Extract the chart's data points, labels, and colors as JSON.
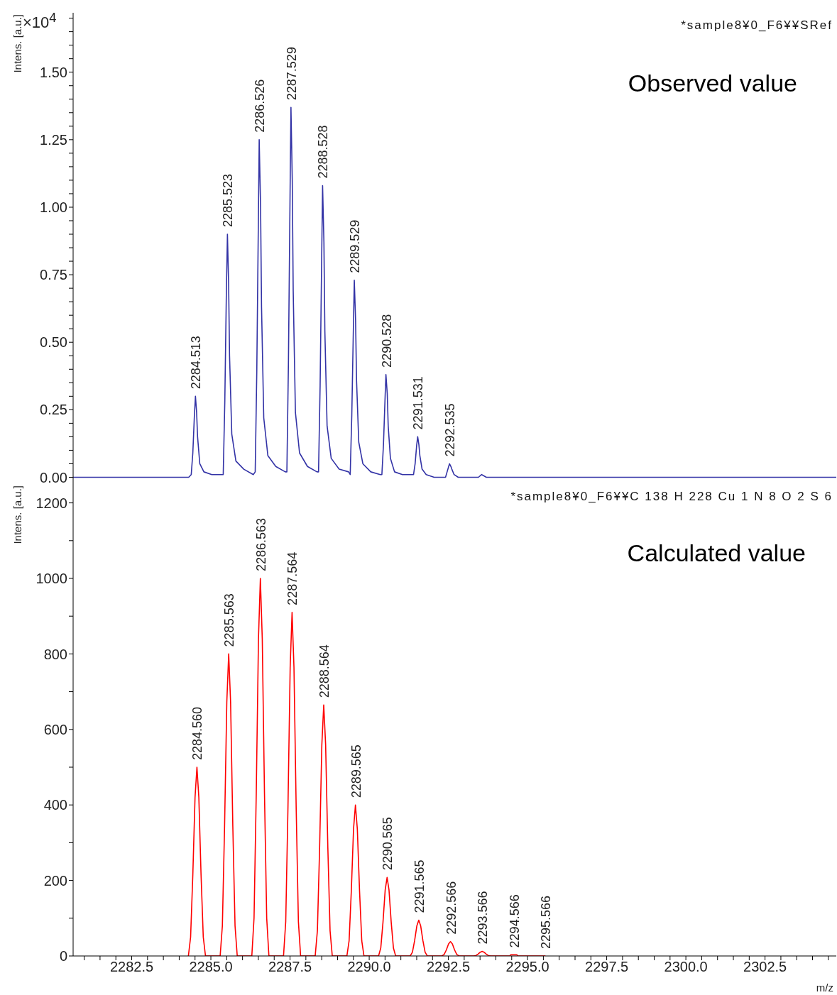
{
  "chart_data": [
    {
      "type": "line",
      "title": "Observed value",
      "ylabel": "Intens. [a.u.]",
      "tick_labels": "y",
      "xlim": [
        2280.65,
        2304.75
      ],
      "ylim": [
        -0.025,
        1.72
      ],
      "yticks": [
        {
          "value": 0,
          "label": "0.00"
        },
        {
          "value": 0.05,
          "label": null
        },
        {
          "value": 0.1,
          "label": null
        },
        {
          "value": 0.15,
          "label": null
        },
        {
          "value": 0.2,
          "label": null
        },
        {
          "value": 0.25,
          "label": "0.25"
        },
        {
          "value": 0.3,
          "label": null
        },
        {
          "value": 0.35,
          "label": null
        },
        {
          "value": 0.4,
          "label": null
        },
        {
          "value": 0.45,
          "label": null
        },
        {
          "value": 0.5,
          "label": "0.50"
        },
        {
          "value": 0.55,
          "label": null
        },
        {
          "value": 0.6,
          "label": null
        },
        {
          "value": 0.65,
          "label": null
        },
        {
          "value": 0.7,
          "label": null
        },
        {
          "value": 0.75,
          "label": "0.75"
        },
        {
          "value": 0.8,
          "label": null
        },
        {
          "value": 0.85,
          "label": null
        },
        {
          "value": 0.9,
          "label": null
        },
        {
          "value": 0.95,
          "label": null
        },
        {
          "value": 1,
          "label": "1.00"
        },
        {
          "value": 1.05,
          "label": null
        },
        {
          "value": 1.1,
          "label": null
        },
        {
          "value": 1.15,
          "label": null
        },
        {
          "value": 1.2,
          "label": null
        },
        {
          "value": 1.25,
          "label": "1.25"
        },
        {
          "value": 1.3,
          "label": null
        },
        {
          "value": 1.35,
          "label": null
        },
        {
          "value": 1.4,
          "label": null
        },
        {
          "value": 1.45,
          "label": null
        },
        {
          "value": 1.5,
          "label": "1.50"
        },
        {
          "value": 1.55,
          "label": null
        },
        {
          "value": 1.6,
          "label": null
        },
        {
          "value": 1.65,
          "label": null
        },
        {
          "value": 1.7,
          "label": null
        }
      ],
      "series": [
        {
          "color": "#3333a6",
          "x": [
            2280.65,
            2284.3,
            2284.38,
            2284.43,
            2284.48,
            2284.513,
            2284.55,
            2284.58,
            2284.65,
            2284.78,
            2285.03,
            2285.33,
            2285.39,
            2285.44,
            2285.49,
            2285.523,
            2285.56,
            2285.59,
            2285.66,
            2285.79,
            2286.04,
            2286.34,
            2286.4,
            2286.45,
            2286.5,
            2286.526,
            2286.57,
            2286.6,
            2286.67,
            2286.8,
            2287.05,
            2287.35,
            2287.4,
            2287.45,
            2287.5,
            2287.529,
            2287.57,
            2287.6,
            2287.67,
            2287.8,
            2288.05,
            2288.35,
            2288.4,
            2288.45,
            2288.5,
            2288.528,
            2288.57,
            2288.6,
            2288.67,
            2288.8,
            2289.05,
            2289.35,
            2289.4,
            2289.45,
            2289.5,
            2289.529,
            2289.57,
            2289.6,
            2289.67,
            2289.8,
            2290.05,
            2290.35,
            2290.4,
            2290.45,
            2290.5,
            2290.528,
            2290.57,
            2290.6,
            2290.67,
            2290.8,
            2291.05,
            2291.35,
            2291.4,
            2291.45,
            2291.5,
            2291.531,
            2291.57,
            2291.6,
            2291.67,
            2291.8,
            2292.05,
            2292.35,
            2292.41,
            2292.46,
            2292.51,
            2292.535,
            2292.58,
            2292.61,
            2292.68,
            2292.81,
            2293.45,
            2293.55,
            2293.7,
            2304.75
          ],
          "values": [
            0,
            0,
            0.01,
            0.09,
            0.23,
            0.3,
            0.24,
            0.15,
            0.05,
            0.02,
            0.01,
            0.01,
            0.01,
            0.28,
            0.69,
            0.9,
            0.72,
            0.45,
            0.16,
            0.06,
            0.03,
            0.01,
            0.02,
            0.39,
            0.95,
            1.25,
            1,
            0.63,
            0.22,
            0.08,
            0.04,
            0.02,
            0.02,
            0.43,
            1.04,
            1.37,
            1.1,
            0.69,
            0.24,
            0.09,
            0.04,
            0.02,
            0.02,
            0.34,
            0.82,
            1.08,
            0.87,
            0.54,
            0.19,
            0.07,
            0.03,
            0.02,
            0.01,
            0.23,
            0.55,
            0.73,
            0.58,
            0.36,
            0.13,
            0.05,
            0.02,
            0.01,
            0.01,
            0.12,
            0.29,
            0.38,
            0.31,
            0.19,
            0.07,
            0.02,
            0.01,
            0.01,
            0.01,
            0.05,
            0.12,
            0.15,
            0.12,
            0.08,
            0.03,
            0.01,
            0,
            0,
            0,
            0.02,
            0.04,
            0.05,
            0.04,
            0.03,
            0.01,
            0,
            0,
            0.01,
            0,
            0
          ]
        }
      ],
      "annotations": [
        "*sample8¥0_F6¥¥SRef",
        "×10$^{4}$",
        {
          "text": "2284.513",
          "x": 2284.513,
          "y": 0.3
        },
        {
          "text": "2285.523",
          "x": 2285.523,
          "y": 0.9
        },
        {
          "text": "2286.526",
          "x": 2286.526,
          "y": 1.25
        },
        {
          "text": "2287.529",
          "x": 2287.529,
          "y": 1.37
        },
        {
          "text": "2288.528",
          "x": 2288.528,
          "y": 1.08
        },
        {
          "text": "2289.529",
          "x": 2289.529,
          "y": 0.73
        },
        {
          "text": "2290.528",
          "x": 2290.528,
          "y": 0.38
        },
        {
          "text": "2291.531",
          "x": 2291.531,
          "y": 0.15
        },
        {
          "text": "2292.535",
          "x": 2292.535,
          "y": 0.05
        }
      ]
    },
    {
      "type": "line",
      "title": "Calculated value",
      "ylabel": "Intens. [a.u.]",
      "xlabel": "m/z",
      "xlim": [
        2280.65,
        2304.75
      ],
      "ylim": [
        0,
        1250
      ],
      "xticks": [
        {
          "value": 2281,
          "label": null
        },
        {
          "value": 2281.5,
          "label": null
        },
        {
          "value": 2282,
          "label": null
        },
        {
          "value": 2282.5,
          "label": "2282.5"
        },
        {
          "value": 2283,
          "label": null
        },
        {
          "value": 2283.5,
          "label": null
        },
        {
          "value": 2284,
          "label": null
        },
        {
          "value": 2284.5,
          "label": null
        },
        {
          "value": 2285,
          "label": "2285.0"
        },
        {
          "value": 2285.5,
          "label": null
        },
        {
          "value": 2286,
          "label": null
        },
        {
          "value": 2286.5,
          "label": null
        },
        {
          "value": 2287,
          "label": null
        },
        {
          "value": 2287.5,
          "label": "2287.5"
        },
        {
          "value": 2288,
          "label": null
        },
        {
          "value": 2288.5,
          "label": null
        },
        {
          "value": 2289,
          "label": null
        },
        {
          "value": 2289.5,
          "label": null
        },
        {
          "value": 2290,
          "label": "2290.0"
        },
        {
          "value": 2290.5,
          "label": null
        },
        {
          "value": 2291,
          "label": null
        },
        {
          "value": 2291.5,
          "label": null
        },
        {
          "value": 2292,
          "label": null
        },
        {
          "value": 2292.5,
          "label": "2292.5"
        },
        {
          "value": 2293,
          "label": null
        },
        {
          "value": 2293.5,
          "label": null
        },
        {
          "value": 2294,
          "label": null
        },
        {
          "value": 2294.5,
          "label": null
        },
        {
          "value": 2295,
          "label": "2295.0"
        },
        {
          "value": 2295.5,
          "label": null
        },
        {
          "value": 2296,
          "label": null
        },
        {
          "value": 2296.5,
          "label": null
        },
        {
          "value": 2297,
          "label": null
        },
        {
          "value": 2297.5,
          "label": "2297.5"
        },
        {
          "value": 2298,
          "label": null
        },
        {
          "value": 2298.5,
          "label": null
        },
        {
          "value": 2299,
          "label": null
        },
        {
          "value": 2299.5,
          "label": null
        },
        {
          "value": 2300,
          "label": "2300.0"
        },
        {
          "value": 2300.5,
          "label": null
        },
        {
          "value": 2301,
          "label": null
        },
        {
          "value": 2301.5,
          "label": null
        },
        {
          "value": 2302,
          "label": null
        },
        {
          "value": 2302.5,
          "label": "2302.5"
        },
        {
          "value": 2303,
          "label": null
        },
        {
          "value": 2303.5,
          "label": null
        },
        {
          "value": 2304,
          "label": null
        },
        {
          "value": 2304.5,
          "label": null
        }
      ],
      "yticks": [
        0,
        {
          "value": 100,
          "label": null
        },
        200,
        {
          "value": 300,
          "label": null
        },
        400,
        {
          "value": 500,
          "label": null
        },
        600,
        {
          "value": 700,
          "label": null
        },
        800,
        {
          "value": 900,
          "label": null
        },
        1000,
        {
          "value": 1100,
          "label": null
        },
        1200
      ],
      "series": [
        {
          "color": "#ff0000",
          "x": [
            2284.29,
            2284.36,
            2284.43,
            2284.5,
            2284.56,
            2284.62,
            2284.69,
            2284.76,
            2284.83,
            2285.293,
            2285.363,
            2285.433,
            2285.503,
            2285.563,
            2285.623,
            2285.693,
            2285.763,
            2285.833,
            2286.293,
            2286.363,
            2286.433,
            2286.503,
            2286.563,
            2286.623,
            2286.693,
            2286.763,
            2286.833,
            2287.294,
            2287.364,
            2287.434,
            2287.504,
            2287.564,
            2287.624,
            2287.694,
            2287.764,
            2287.834,
            2288.294,
            2288.364,
            2288.434,
            2288.504,
            2288.564,
            2288.624,
            2288.694,
            2288.764,
            2288.834,
            2289.295,
            2289.365,
            2289.435,
            2289.505,
            2289.565,
            2289.625,
            2289.695,
            2289.765,
            2289.835,
            2290.295,
            2290.365,
            2290.435,
            2290.505,
            2290.565,
            2290.625,
            2290.695,
            2290.765,
            2290.835,
            2291.295,
            2291.365,
            2291.435,
            2291.505,
            2291.565,
            2291.625,
            2291.695,
            2291.765,
            2291.835,
            2292.296,
            2292.366,
            2292.436,
            2292.506,
            2292.566,
            2292.626,
            2292.696,
            2292.766,
            2292.836,
            2293.296,
            2293.366,
            2293.436,
            2293.506,
            2293.566,
            2293.626,
            2293.696,
            2293.766,
            2293.836,
            2294.446,
            2294.466,
            2294.666,
            2294.686,
            2295.566
          ],
          "values": [
            0,
            50,
            215,
            420,
            500,
            420,
            215,
            50,
            0,
            0,
            80,
            344,
            672,
            800,
            672,
            344,
            80,
            0,
            0,
            100,
            430,
            840,
            1000,
            840,
            430,
            100,
            0,
            0,
            91,
            391,
            764,
            910,
            764,
            391,
            91,
            0,
            0,
            67,
            286,
            559,
            665,
            559,
            286,
            67,
            0,
            0,
            40,
            172,
            336,
            400,
            336,
            172,
            40,
            0,
            0,
            21,
            89,
            175,
            208,
            175,
            89,
            21,
            0,
            0,
            10,
            41,
            80,
            95,
            80,
            41,
            10,
            0,
            0,
            4,
            16,
            32,
            38,
            32,
            16,
            4,
            0,
            0,
            1,
            5,
            10,
            12,
            10,
            5,
            1,
            0,
            0,
            3,
            3,
            0,
            0
          ]
        }
      ],
      "annotations": [
        "*sample8¥0_F6¥¥C 138 H 228 Cu 1 N 8 O 2 S 6",
        {
          "text": "2284.560",
          "x": 2284.56,
          "y": 500
        },
        {
          "text": "2285.563",
          "x": 2285.563,
          "y": 800
        },
        {
          "text": "2286.563",
          "x": 2286.563,
          "y": 1000
        },
        {
          "text": "2287.564",
          "x": 2287.564,
          "y": 910
        },
        {
          "text": "2288.564",
          "x": 2288.564,
          "y": 665
        },
        {
          "text": "2289.565",
          "x": 2289.565,
          "y": 400
        },
        {
          "text": "2290.565",
          "x": 2290.565,
          "y": 208
        },
        {
          "text": "2291.565",
          "x": 2291.565,
          "y": 95
        },
        {
          "text": "2292.566",
          "x": 2292.566,
          "y": 38
        },
        {
          "text": "2293.566",
          "x": 2293.566,
          "y": 12
        },
        {
          "text": "2294.566",
          "x": 2294.566,
          "y": 3
        },
        {
          "text": "2295.566",
          "x": 2295.566,
          "y": 0
        }
      ]
    }
  ]
}
